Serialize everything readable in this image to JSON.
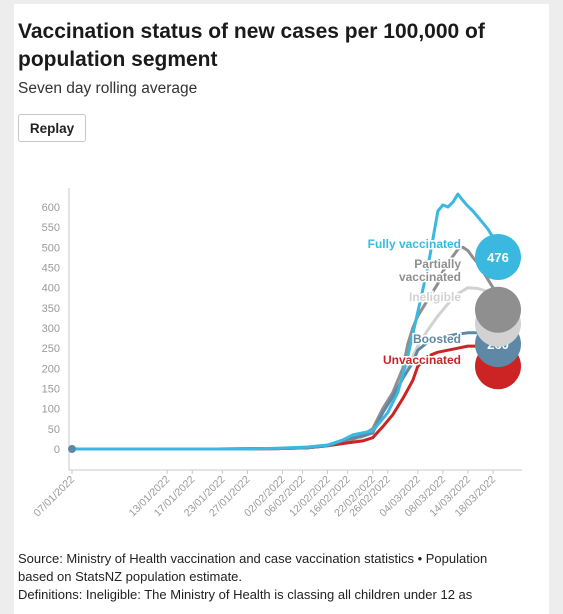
{
  "chart_data": {
    "type": "line",
    "title": "Vaccination status of new cases per 100,000 of population segment",
    "subtitle": "Seven day rolling average",
    "ylim": [
      0,
      600
    ],
    "y_ticks": [
      0,
      50,
      100,
      150,
      200,
      250,
      300,
      350,
      400,
      450,
      500,
      550,
      600
    ],
    "x_tick_labels": [
      "07/01/2022",
      "13/01/2022",
      "17/01/2022",
      "23/01/2022",
      "27/01/2022",
      "02/02/2022",
      "06/02/2022",
      "12/02/2022",
      "16/02/2022",
      "22/02/2022",
      "26/02/2022",
      "04/03/2022",
      "08/03/2022",
      "14/03/2022",
      "18/03/2022"
    ],
    "x_days": [
      1,
      20,
      25,
      31,
      36,
      43,
      47,
      52,
      56,
      61,
      64,
      70,
      75,
      80,
      85
    ],
    "series": [
      {
        "name": "Fully vaccinated",
        "color": "#3bb8df",
        "end_value": 476,
        "end_label": "476",
        "x": [
          1,
          30,
          36,
          42,
          48,
          52,
          55,
          57,
          59,
          61,
          64,
          66,
          68,
          70,
          72,
          74,
          75,
          76,
          77,
          78,
          79,
          80,
          81,
          82,
          83,
          84,
          85,
          86
        ],
        "y": [
          0,
          0,
          0,
          2,
          5,
          10,
          22,
          35,
          40,
          45,
          90,
          140,
          230,
          340,
          450,
          590,
          605,
          600,
          612,
          632,
          616,
          602,
          590,
          575,
          560,
          545,
          525,
          476
        ]
      },
      {
        "name": "Partially vaccinated",
        "color": "#8f8f8f",
        "end_label": "",
        "x": [
          1,
          30,
          42,
          48,
          52,
          56,
          59,
          61,
          63,
          65,
          67,
          68,
          69,
          70,
          72,
          74,
          75,
          76,
          77,
          78,
          79,
          80,
          81,
          82,
          83,
          84,
          85,
          86
        ],
        "y": [
          0,
          0,
          1,
          3,
          8,
          18,
          35,
          50,
          100,
          140,
          200,
          260,
          300,
          330,
          370,
          410,
          440,
          460,
          478,
          495,
          500,
          492,
          475,
          460,
          440,
          420,
          400,
          380
        ]
      },
      {
        "name": "Ineligible",
        "color": "#d2d2d2",
        "end_label": "",
        "x": [
          1,
          30,
          42,
          48,
          52,
          56,
          59,
          61,
          63,
          65,
          67,
          69,
          70,
          72,
          74,
          76,
          78,
          80,
          82,
          84,
          86
        ],
        "y": [
          0,
          0,
          1,
          3,
          8,
          18,
          30,
          42,
          90,
          130,
          175,
          230,
          255,
          295,
          330,
          360,
          385,
          400,
          398,
          390,
          380
        ]
      },
      {
        "name": "Boosted",
        "color": "#5e88a6",
        "end_value": 260,
        "end_label": "260",
        "x": [
          1,
          30,
          42,
          48,
          52,
          56,
          59,
          61,
          63,
          65,
          67,
          69,
          70,
          72,
          74,
          76,
          78,
          80,
          82,
          84,
          86
        ],
        "y": [
          0,
          0,
          1,
          3,
          8,
          25,
          32,
          40,
          90,
          130,
          175,
          215,
          245,
          265,
          275,
          280,
          285,
          288,
          288,
          285,
          260
        ]
      },
      {
        "name": "Unvaccinated",
        "color": "#cc2424",
        "end_label": "",
        "x": [
          1,
          30,
          42,
          48,
          52,
          56,
          59,
          61,
          63,
          65,
          67,
          69,
          70,
          72,
          74,
          76,
          78,
          80,
          82,
          84,
          86
        ],
        "y": [
          0,
          0,
          1,
          3,
          8,
          15,
          20,
          28,
          55,
          85,
          125,
          170,
          205,
          230,
          240,
          245,
          250,
          255,
          255,
          250,
          240
        ]
      }
    ]
  },
  "replay_label": "Replay",
  "source_text": "Source: Ministry of Health vaccination and case vaccination statistics • Population based on StatsNZ population estimate.",
  "definitions_text": "Definitions: Ineligible: The Ministry of Health is classing all children under 12 as"
}
